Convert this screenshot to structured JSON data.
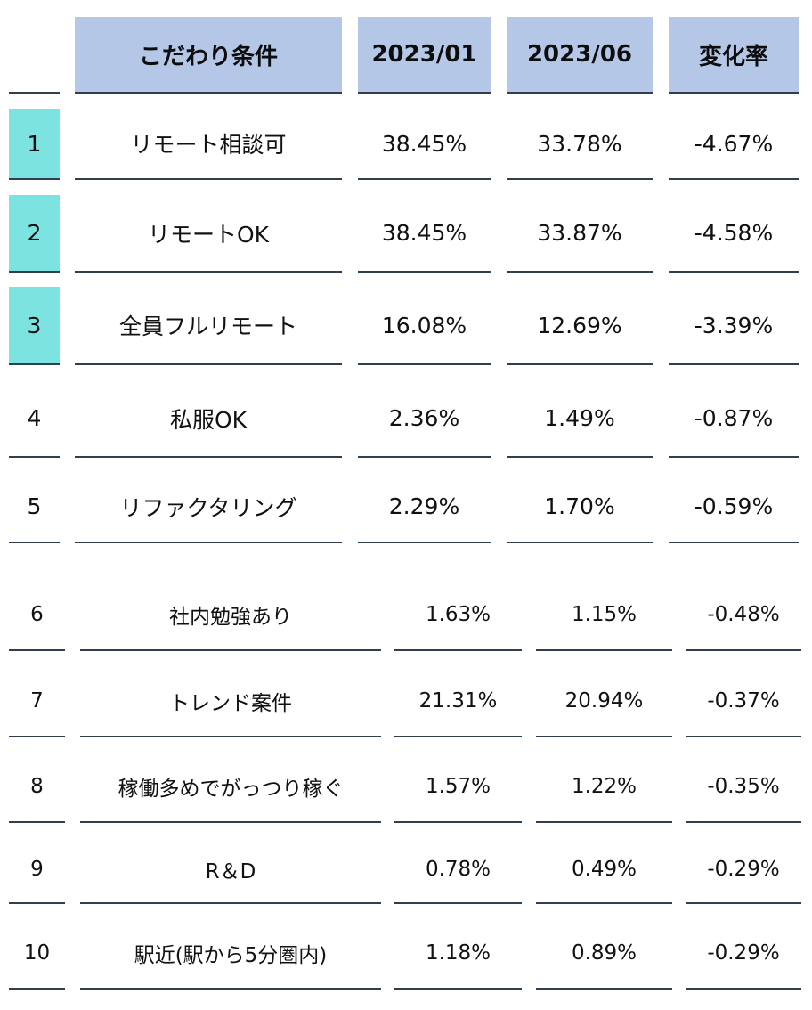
{
  "header": {
    "condition": "こだわり条件",
    "jan": "2023/01",
    "jun": "2023/06",
    "change": "変化率"
  },
  "rows": [
    {
      "rank": "1",
      "condition": "リモート相談可",
      "jan": "38.45%",
      "jun": "33.78%",
      "change": "-4.67%",
      "highlight": true
    },
    {
      "rank": "2",
      "condition": "リモートOK",
      "jan": "38.45%",
      "jun": "33.87%",
      "change": "-4.58%",
      "highlight": true
    },
    {
      "rank": "3",
      "condition": "全員フルリモート",
      "jan": "16.08%",
      "jun": "12.69%",
      "change": "-3.39%",
      "highlight": true
    },
    {
      "rank": "4",
      "condition": "私服OK",
      "jan": "2.36%",
      "jun": "1.49%",
      "change": "-0.87%",
      "highlight": false
    },
    {
      "rank": "5",
      "condition": "リファクタリング",
      "jan": "2.29%",
      "jun": "1.70%",
      "change": "-0.59%",
      "highlight": false
    },
    {
      "rank": "6",
      "condition": "社内勉強あり",
      "jan": "1.63%",
      "jun": "1.15%",
      "change": "-0.48%",
      "highlight": false
    },
    {
      "rank": "7",
      "condition": "トレンド案件",
      "jan": "21.31%",
      "jun": "20.94%",
      "change": "-0.37%",
      "highlight": false
    },
    {
      "rank": "8",
      "condition": "稼働多めでがっつり稼ぐ",
      "jan": "1.57%",
      "jun": "1.22%",
      "change": "-0.35%",
      "highlight": false
    },
    {
      "rank": "9",
      "condition": "R＆D",
      "jan": "0.78%",
      "jun": "0.49%",
      "change": "-0.29%",
      "highlight": false
    },
    {
      "rank": "10",
      "condition": "駅近(駅から5分圏内)",
      "jan": "1.18%",
      "jun": "0.89%",
      "change": "-0.29%",
      "highlight": false
    }
  ],
  "colors": {
    "header_bg": "#b4c7e7",
    "highlight_bg": "#7de3e1",
    "rule": "#2f3f4f"
  }
}
